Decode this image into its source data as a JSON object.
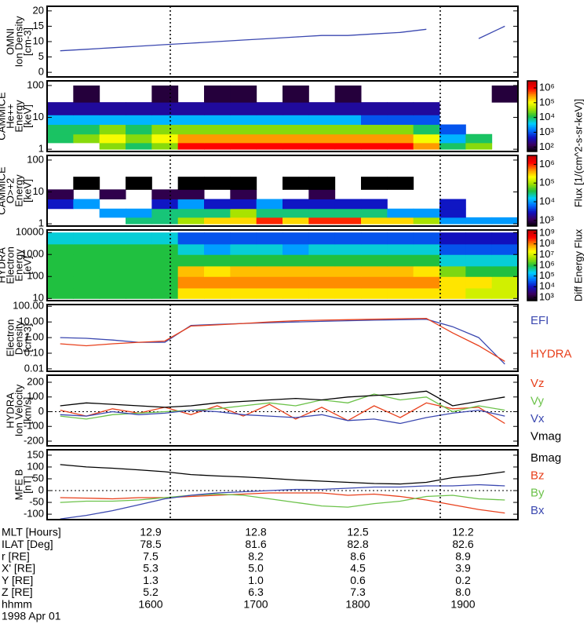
{
  "chart_data": [
    {
      "type": "line",
      "ylabel": [
        "OMNI",
        "Ion Density",
        "[cm-3]"
      ],
      "x": [
        "1505",
        "1520",
        "1535",
        "1550",
        "1605",
        "1620",
        "1635",
        "1650",
        "1705",
        "1720",
        "1735",
        "1750",
        "1805",
        "1820",
        "1835",
        "1850",
        "1905",
        "1920"
      ],
      "ylim": [
        -1.5,
        21.5
      ],
      "yticks": [
        0,
        5,
        10,
        15,
        20
      ],
      "series": [
        {
          "color": "#3b48b0",
          "values": [
            7,
            7.5,
            8,
            8.5,
            9,
            9.5,
            10,
            10.5,
            11,
            11.5,
            12,
            12,
            12.5,
            13,
            14,
            null,
            11,
            15
          ]
        }
      ]
    },
    {
      "type": "heatmap",
      "ylabel": [
        "CAMMICE",
        "He++",
        "Energy",
        "[keV]"
      ],
      "log_y": true,
      "x": [
        "1505",
        "1520",
        "1535",
        "1550",
        "1605",
        "1620",
        "1635",
        "1650",
        "1705",
        "1720",
        "1735",
        "1750",
        "1805",
        "1820",
        "1835",
        "1850",
        "1905",
        "1920"
      ],
      "ylim": [
        0.85,
        140
      ],
      "yticks": [
        1,
        10,
        100
      ],
      "y_edges": [
        1,
        1.6,
        3,
        6,
        12,
        30,
        100
      ],
      "z": [
        [
          null,
          null,
          30000.0,
          10000.0,
          30000.0,
          1000000.0,
          1000000.0,
          1000000.0,
          1000000.0,
          1000000.0,
          1000000.0,
          1000000.0,
          1000000.0,
          1000000.0,
          300000.0,
          10000.0,
          30000.0,
          null
        ],
        [
          10000.0,
          30000.0,
          100000.0,
          30000.0,
          100000.0,
          300000.0,
          300000.0,
          300000.0,
          300000.0,
          300000.0,
          300000.0,
          300000.0,
          300000.0,
          300000.0,
          100000.0,
          3000.0,
          10000.0,
          null
        ],
        [
          10000.0,
          10000.0,
          30000.0,
          10000.0,
          30000.0,
          30000.0,
          30000.0,
          30000.0,
          30000.0,
          30000.0,
          30000.0,
          30000.0,
          30000.0,
          30000.0,
          10000.0,
          1000.0,
          null,
          null
        ],
        [
          3000.0,
          3000.0,
          3000.0,
          3000.0,
          3000.0,
          3000.0,
          3000.0,
          3000.0,
          3000.0,
          3000.0,
          3000.0,
          3000.0,
          1000.0,
          1000.0,
          1000.0,
          null,
          null,
          null
        ],
        [
          300,
          300,
          300,
          300,
          300,
          300,
          300,
          300,
          300,
          300,
          300,
          300,
          300,
          300,
          300,
          null,
          null,
          null
        ],
        [
          null,
          100,
          null,
          null,
          100,
          null,
          100,
          100,
          null,
          100,
          null,
          100,
          null,
          null,
          null,
          null,
          null,
          100
        ]
      ],
      "clim": [
        50,
        3000000.0
      ],
      "cticks": [
        {
          "value": 100,
          "label": "10²"
        },
        {
          "value": 1000,
          "label": "10³"
        },
        {
          "value": 10000,
          "label": "10⁴"
        },
        {
          "value": 100000,
          "label": "10⁵"
        },
        {
          "value": 1000000,
          "label": "10⁶"
        }
      ],
      "colors": [
        "#000000",
        "#3b0060",
        "#1010c0",
        "#0070ff",
        "#00d0ff",
        "#20c040",
        "#a0e000",
        "#ffff00",
        "#ff9000",
        "#ff0000",
        "#c00000"
      ]
    },
    {
      "type": "heatmap",
      "ylabel": [
        "CAMMICE",
        "O>+2",
        "Energy",
        "[keV]"
      ],
      "log_y": true,
      "x": [
        "1505",
        "1520",
        "1535",
        "1550",
        "1605",
        "1620",
        "1635",
        "1650",
        "1705",
        "1720",
        "1735",
        "1750",
        "1805",
        "1820",
        "1835",
        "1850",
        "1905",
        "1920"
      ],
      "ylim": [
        0.85,
        140
      ],
      "yticks": [
        1,
        10,
        100
      ],
      "y_edges": [
        1,
        1.6,
        3,
        6,
        12,
        30,
        100
      ],
      "z": [
        [
          null,
          null,
          null,
          30000.0,
          30000.0,
          100000.0,
          300000.0,
          300000.0,
          1000000.0,
          300000.0,
          1000000.0,
          1000000.0,
          300000.0,
          300000.0,
          100000.0,
          10000.0,
          10000.0,
          10000.0
        ],
        [
          null,
          null,
          10000.0,
          10000.0,
          30000.0,
          30000.0,
          30000.0,
          100000.0,
          30000.0,
          30000.0,
          30000.0,
          30000.0,
          30000.0,
          10000.0,
          10000.0,
          3000.0,
          null,
          null
        ],
        [
          3000.0,
          10000.0,
          null,
          null,
          3000.0,
          10000.0,
          3000.0,
          3000.0,
          10000.0,
          3000.0,
          3000.0,
          3000.0,
          3000.0,
          null,
          null,
          3000.0,
          null,
          null
        ],
        [
          1000.0,
          null,
          1000.0,
          null,
          1000.0,
          1000.0,
          null,
          1000.0,
          null,
          null,
          1000.0,
          null,
          null,
          null,
          null,
          null,
          null,
          null
        ],
        [
          null,
          500,
          null,
          500,
          null,
          500,
          500,
          500,
          null,
          500,
          500,
          null,
          500,
          500,
          null,
          null,
          null,
          null
        ],
        [
          null,
          null,
          null,
          null,
          null,
          null,
          null,
          null,
          null,
          null,
          null,
          null,
          null,
          null,
          null,
          null,
          null,
          null
        ]
      ],
      "clim": [
        500,
        3000000.0
      ],
      "cticks": [
        {
          "value": 1000,
          "label": "10³"
        },
        {
          "value": 10000,
          "label": "10⁴"
        },
        {
          "value": 100000,
          "label": "10⁵"
        },
        {
          "value": 1000000,
          "label": "10⁶"
        }
      ],
      "colorbar_title": "Flux [1/(cm^2-s-sr-keV)]",
      "colors": [
        "#000000",
        "#3b0060",
        "#1010c0",
        "#0070ff",
        "#00d0ff",
        "#20c040",
        "#a0e000",
        "#ffff00",
        "#ff9000",
        "#ff0000",
        "#c00000"
      ]
    },
    {
      "type": "heatmap",
      "ylabel": [
        "HYDRA",
        "Electron",
        "Energy",
        "[eV]"
      ],
      "log_y": true,
      "x": [
        "1505",
        "1520",
        "1535",
        "1550",
        "1605",
        "1620",
        "1635",
        "1650",
        "1705",
        "1720",
        "1735",
        "1750",
        "1805",
        "1820",
        "1835",
        "1850",
        "1905",
        "1920"
      ],
      "ylim": [
        8,
        13000
      ],
      "yticks": [
        10,
        100,
        1000,
        10000
      ],
      "y_edges": [
        10,
        30,
        100,
        300,
        1000,
        3000,
        10000
      ],
      "z": [
        [
          1000000.0,
          1000000.0,
          1000000.0,
          1000000.0,
          1000000.0,
          30000000.0,
          30000000.0,
          30000000.0,
          30000000.0,
          30000000.0,
          30000000.0,
          30000000.0,
          30000000.0,
          30000000.0,
          30000000.0,
          30000000.0,
          10000000.0,
          10000000.0
        ],
        [
          1000000.0,
          1000000.0,
          1000000.0,
          1000000.0,
          1000000.0,
          100000000.0,
          100000000.0,
          100000000.0,
          100000000.0,
          100000000.0,
          100000000.0,
          100000000.0,
          100000000.0,
          100000000.0,
          100000000.0,
          30000000.0,
          30000000.0,
          10000000.0
        ],
        [
          1000000.0,
          1000000.0,
          1000000.0,
          1000000.0,
          1000000.0,
          50000000.0,
          30000000.0,
          50000000.0,
          50000000.0,
          50000000.0,
          50000000.0,
          50000000.0,
          50000000.0,
          50000000.0,
          30000000.0,
          3000000.0,
          1000000.0,
          1000000.0
        ],
        [
          1000000.0,
          1000000.0,
          1000000.0,
          1000000.0,
          1000000.0,
          1000000.0,
          1000000.0,
          1000000.0,
          1000000.0,
          1000000.0,
          1000000.0,
          1000000.0,
          1000000.0,
          1000000.0,
          1000000.0,
          300000.0,
          300000.0,
          300000.0
        ],
        [
          1000000.0,
          1000000.0,
          1000000.0,
          1000000.0,
          1000000.0,
          300000.0,
          100000.0,
          300000.0,
          300000.0,
          100000.0,
          300000.0,
          300000.0,
          300000.0,
          300000.0,
          300000.0,
          30000.0,
          30000.0,
          30000.0
        ],
        [
          300000.0,
          300000.0,
          300000.0,
          300000.0,
          300000.0,
          30000.0,
          30000.0,
          30000.0,
          30000.0,
          30000.0,
          30000.0,
          30000.0,
          30000.0,
          30000.0,
          30000.0,
          10000.0,
          10000.0,
          10000.0
        ]
      ],
      "clim": [
        500,
        2000000000.0
      ],
      "cticks": [
        {
          "value": 1000,
          "label": "10³"
        },
        {
          "value": 10000,
          "label": "10⁴"
        },
        {
          "value": 100000,
          "label": "10⁵"
        },
        {
          "value": 1000000,
          "label": "10⁶"
        },
        {
          "value": 10000000,
          "label": "10⁷"
        },
        {
          "value": 100000000,
          "label": "10⁸"
        },
        {
          "value": 1000000000,
          "label": "10⁹"
        }
      ],
      "colorbar_title": "Diff Energy Flux",
      "colors": [
        "#000000",
        "#3b0060",
        "#1010c0",
        "#0070ff",
        "#00d0ff",
        "#20c040",
        "#a0e000",
        "#ffff00",
        "#ff9000",
        "#ff0000",
        "#c00000"
      ]
    },
    {
      "type": "line",
      "ylabel": [
        "Electron",
        "Density",
        "[cm-3]"
      ],
      "log_y": true,
      "x": [
        "1505",
        "1520",
        "1535",
        "1550",
        "1605",
        "1620",
        "1635",
        "1650",
        "1705",
        "1720",
        "1735",
        "1750",
        "1805",
        "1820",
        "1835",
        "1850",
        "1905",
        "1920"
      ],
      "ylim": [
        0.007,
        130
      ],
      "yticks": [
        {
          "value": 0.01,
          "label": "0.01"
        },
        {
          "value": 0.1,
          "label": "0.10"
        },
        {
          "value": 1,
          "label": "1.00"
        },
        {
          "value": 10,
          "label": "10.00"
        },
        {
          "value": 100,
          "label": "100.00"
        }
      ],
      "series": [
        {
          "name": "EFI",
          "color": "#3b48b0",
          "values": [
            1,
            0.9,
            0.7,
            0.5,
            0.5,
            6,
            7,
            8,
            9,
            10,
            11,
            12,
            13,
            14,
            15,
            5,
            1,
            0.02
          ]
        },
        {
          "name": "HYDRA",
          "color": "#e8401c",
          "values": [
            0.4,
            0.3,
            0.4,
            0.5,
            0.6,
            5.5,
            6.5,
            8,
            10,
            12,
            13,
            14,
            15,
            16,
            17,
            2,
            0.3,
            0.03
          ]
        }
      ]
    },
    {
      "type": "line",
      "ylabel": [
        "HYDRA",
        "Ion Velocity",
        "[km/s]"
      ],
      "hline": 0,
      "x": [
        "1505",
        "1520",
        "1535",
        "1550",
        "1605",
        "1620",
        "1635",
        "1650",
        "1705",
        "1720",
        "1735",
        "1750",
        "1805",
        "1820",
        "1835",
        "1850",
        "1905",
        "1920"
      ],
      "ylim": [
        -232,
        248
      ],
      "yticks": [
        -200,
        -100,
        0,
        100,
        200
      ],
      "series": [
        {
          "name": "Vz",
          "color": "#e8401c",
          "values": [
            10,
            -30,
            20,
            -10,
            30,
            -20,
            40,
            -30,
            50,
            -50,
            30,
            -60,
            40,
            -40,
            60,
            20,
            30,
            -80
          ]
        },
        {
          "name": "Vy",
          "color": "#6cc24a",
          "values": [
            -30,
            -50,
            -20,
            -10,
            0,
            10,
            20,
            40,
            60,
            40,
            80,
            60,
            120,
            80,
            100,
            0,
            40,
            10
          ]
        },
        {
          "name": "Vx",
          "color": "#3b48b0",
          "values": [
            -20,
            -30,
            0,
            -20,
            -10,
            10,
            0,
            -20,
            -30,
            -40,
            -20,
            -60,
            -50,
            -80,
            -40,
            -10,
            10,
            -30
          ]
        },
        {
          "name": "Vmag",
          "color": "#000000",
          "values": [
            40,
            60,
            50,
            40,
            30,
            40,
            60,
            70,
            80,
            90,
            80,
            100,
            110,
            120,
            140,
            40,
            70,
            100
          ]
        }
      ]
    },
    {
      "type": "line",
      "ylabel": [
        "MFE B",
        "[nT]"
      ],
      "hline": 0,
      "x": [
        "1505",
        "1520",
        "1535",
        "1550",
        "1605",
        "1620",
        "1635",
        "1650",
        "1705",
        "1720",
        "1735",
        "1750",
        "1805",
        "1820",
        "1835",
        "1850",
        "1905",
        "1920"
      ],
      "ylim": [
        -123,
        173
      ],
      "yticks": [
        -100,
        -50,
        0,
        50,
        100,
        150
      ],
      "series": [
        {
          "name": "Bmag",
          "color": "#000000",
          "values": [
            110,
            100,
            95,
            88,
            80,
            68,
            62,
            58,
            52,
            45,
            40,
            35,
            30,
            28,
            35,
            55,
            65,
            80
          ]
        },
        {
          "name": "Bz",
          "color": "#e8401c",
          "values": [
            -30,
            -32,
            -35,
            -30,
            -30,
            -25,
            -20,
            -15,
            -10,
            -10,
            -10,
            -20,
            -15,
            -25,
            -40,
            -60,
            -80,
            -95
          ]
        },
        {
          "name": "By",
          "color": "#6cc24a",
          "values": [
            -50,
            -45,
            -45,
            -40,
            -30,
            -20,
            -15,
            -20,
            -35,
            -50,
            -65,
            -70,
            -55,
            -45,
            -25,
            -20,
            -35,
            -40
          ]
        },
        {
          "name": "Bx",
          "color": "#3b48b0",
          "values": [
            -120,
            -105,
            -85,
            -60,
            -35,
            -20,
            -10,
            -5,
            0,
            5,
            5,
            10,
            15,
            15,
            20,
            20,
            25,
            20
          ]
        }
      ]
    }
  ],
  "ephemeris": {
    "rows": [
      {
        "label": "MLT [Hours]",
        "values": [
          "12.9",
          "12.8",
          "12.5",
          "12.2"
        ]
      },
      {
        "label": "ILAT [Deg]",
        "values": [
          "78.5",
          "81.6",
          "82.8",
          "82.6"
        ]
      },
      {
        "label": "r [RE]",
        "values": [
          "7.5",
          "8.2",
          "8.6",
          "8.9"
        ]
      },
      {
        "label": "X' [RE]",
        "values": [
          "5.3",
          "5.0",
          "4.5",
          "3.9"
        ]
      },
      {
        "label": "Y [RE]",
        "values": [
          "1.3",
          "1.0",
          "0.6",
          "0.2"
        ]
      },
      {
        "label": "Z [RE]",
        "values": [
          "5.2",
          "6.3",
          "7.3",
          "8.0"
        ]
      },
      {
        "label": "hhmm",
        "values": [
          "1600",
          "1700",
          "1800",
          "1900"
        ]
      }
    ],
    "date": "1998 Apr 01"
  }
}
